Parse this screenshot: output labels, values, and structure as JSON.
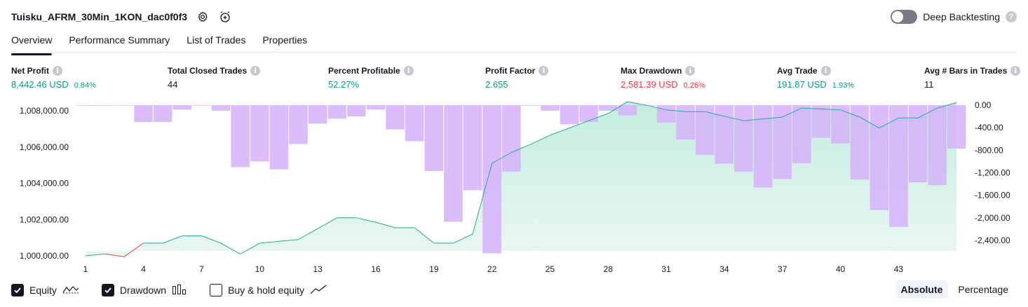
{
  "header": {
    "title": "Tuisku_AFRM_30Min_1KON_dac0f0f3",
    "settings_icon": "gear-icon",
    "alert_icon": "alarm-clock-plus-icon"
  },
  "deep_backtesting": {
    "label": "Deep Backtesting",
    "enabled": false,
    "help": "?"
  },
  "tabs": [
    {
      "label": "Overview",
      "active": true
    },
    {
      "label": "Performance Summary",
      "active": false
    },
    {
      "label": "List of Trades",
      "active": false
    },
    {
      "label": "Properties",
      "active": false
    }
  ],
  "metrics": {
    "net_profit": {
      "label": "Net Profit",
      "value": "8,442.46 USD",
      "sub": "0.84%"
    },
    "total_closed_trades": {
      "label": "Total Closed Trades",
      "value": "44"
    },
    "percent_profitable": {
      "label": "Percent Profitable",
      "value": "52.27%"
    },
    "profit_factor": {
      "label": "Profit Factor",
      "value": "2.655"
    },
    "max_drawdown": {
      "label": "Max Drawdown",
      "value": "2,581.39 USD",
      "sub": "0.26%"
    },
    "avg_trade": {
      "label": "Avg Trade",
      "value": "191.87 USD",
      "sub": "1.93%"
    },
    "avg_bars": {
      "label": "Avg # Bars in Trades",
      "value": "11"
    }
  },
  "colors": {
    "equity_line": "#22ab94",
    "equity_fill_top": "#c4ecdf",
    "equity_fill_bottom": "#eaf7f2",
    "drawdown_bar": "#d5b2fa",
    "equity_loss": "#f23645",
    "positive": "#089981",
    "negative": "#f23645"
  },
  "chart_data": {
    "type": "bar+area",
    "x": [
      1,
      2,
      3,
      4,
      5,
      6,
      7,
      8,
      9,
      10,
      11,
      12,
      13,
      14,
      15,
      16,
      17,
      18,
      19,
      20,
      21,
      22,
      23,
      24,
      25,
      26,
      27,
      28,
      29,
      30,
      31,
      32,
      33,
      34,
      35,
      36,
      37,
      38,
      39,
      40,
      41,
      42,
      43,
      44,
      45,
      46
    ],
    "x_tick_labels": [
      "1",
      "4",
      "7",
      "10",
      "13",
      "16",
      "19",
      "22",
      "25",
      "28",
      "31",
      "34",
      "37",
      "40",
      "43"
    ],
    "left_axis": {
      "ticks": [
        "1,000,000.00",
        "1,002,000.00",
        "1,004,000.00",
        "1,006,000.00",
        "1,008,000.00"
      ],
      "ylim": [
        999600,
        1008900
      ]
    },
    "right_axis": {
      "ticks": [
        "0.00",
        "-400.00",
        "-800.00",
        "-1,200.00",
        "-1,600.00",
        "-2,000.00",
        "-2,400.00"
      ],
      "ylim": [
        -2700,
        100
      ]
    },
    "series": [
      {
        "name": "Equity",
        "type": "area",
        "axis": "left",
        "values": [
          1000000,
          1000100,
          999950,
          1000700,
          1000700,
          1001100,
          1001100,
          1000700,
          1000100,
          1000700,
          1000800,
          1000900,
          1001500,
          1002100,
          1002100,
          1001850,
          1001550,
          1001550,
          1000700,
          1000700,
          1001200,
          1005100,
          1005700,
          1006150,
          1006650,
          1007050,
          1007450,
          1007850,
          1008500,
          1008300,
          1008050,
          1007950,
          1007950,
          1007700,
          1007450,
          1007550,
          1007650,
          1008150,
          1008100,
          1008050,
          1007650,
          1007050,
          1007600,
          1007600,
          1008150,
          1008450
        ]
      },
      {
        "name": "Drawdown",
        "type": "bar",
        "axis": "right",
        "values": [
          -10,
          -10,
          -10,
          -300,
          -300,
          -80,
          -10,
          -100,
          -1100,
          -1000,
          -1140,
          -690,
          -330,
          -240,
          -200,
          -80,
          -430,
          -640,
          -1170,
          -2070,
          -1510,
          -2630,
          -1180,
          -10,
          -100,
          -340,
          -300,
          -100,
          -180,
          0,
          -310,
          -610,
          -880,
          -1040,
          -1180,
          -1460,
          -1310,
          -1030,
          -580,
          -680,
          -1320,
          -1860,
          -2160,
          -1370,
          -1420,
          -770
        ]
      }
    ]
  },
  "legend": {
    "equity": {
      "label": "Equity",
      "checked": true,
      "icon": "equity-line-icon"
    },
    "drawdown": {
      "label": "Drawdown",
      "checked": true,
      "icon": "drawdown-bars-icon"
    },
    "buy_hold": {
      "label": "Buy & hold equity",
      "checked": false,
      "icon": "buy-hold-line-icon"
    }
  },
  "view_mode": {
    "absolute": "Absolute",
    "percentage": "Percentage",
    "selected": "Absolute"
  }
}
